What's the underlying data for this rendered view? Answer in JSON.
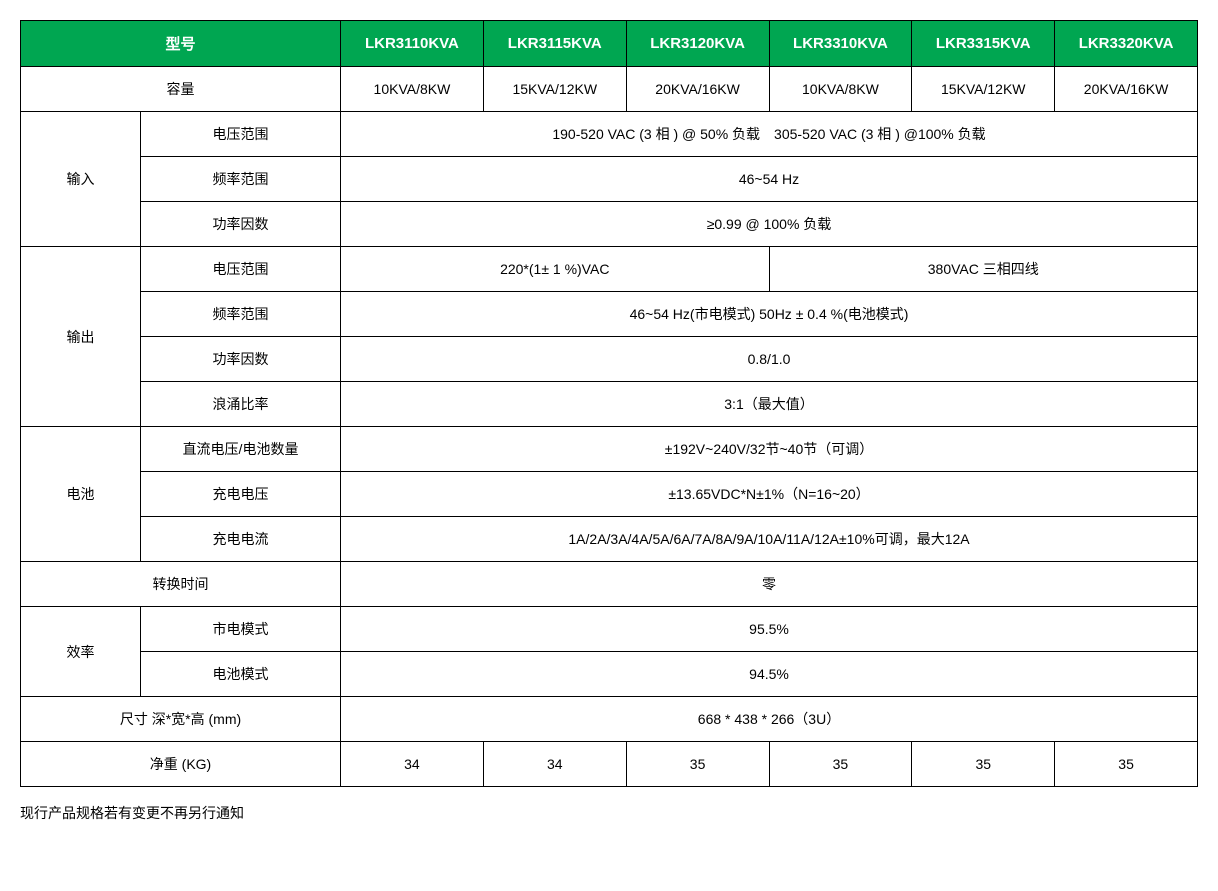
{
  "colors": {
    "header_bg": "#00a651",
    "header_text": "#ffffff",
    "border": "#000000",
    "body_bg": "#ffffff",
    "text": "#000000"
  },
  "header": {
    "model_label": "型号",
    "models": [
      "LKR3110KVA",
      "LKR3115KVA",
      "LKR3120KVA",
      "LKR3310KVA",
      "LKR3315KVA",
      "LKR3320KVA"
    ]
  },
  "capacity": {
    "label": "容量",
    "values": [
      "10KVA/8KW",
      "15KVA/12KW",
      "20KVA/16KW",
      "10KVA/8KW",
      "15KVA/12KW",
      "20KVA/16KW"
    ]
  },
  "input": {
    "label": "输入",
    "voltage_range": {
      "label": "电压范围",
      "value": "190-520 VAC (3 相 ) @ 50% 负载　305-520 VAC (3 相 ) @100% 负载"
    },
    "freq_range": {
      "label": "频率范围",
      "value": "46~54 Hz"
    },
    "power_factor": {
      "label": "功率因数",
      "value": "≥0.99 @ 100% 负载"
    }
  },
  "output": {
    "label": "输出",
    "voltage_range": {
      "label": "电压范围",
      "value1": "220*(1± 1 %)VAC",
      "value2": "380VAC 三相四线"
    },
    "freq_range": {
      "label": "频率范围",
      "value": "46~54 Hz(市电模式)  50Hz ± 0.4 %(电池模式)"
    },
    "power_factor": {
      "label": "功率因数",
      "value": "0.8/1.0"
    },
    "surge_ratio": {
      "label": "浪涌比率",
      "value": "3:1（最大值）"
    }
  },
  "battery": {
    "label": "电池",
    "dc_voltage": {
      "label": "直流电压/电池数量",
      "value": "±192V~240V/32节~40节（可调）"
    },
    "charge_voltage": {
      "label": "充电电压",
      "value": "±13.65VDC*N±1%（N=16~20）"
    },
    "charge_current": {
      "label": "充电电流",
      "value": "1A/2A/3A/4A/5A/6A/7A/8A/9A/10A/11A/12A±10%可调，最大12A"
    }
  },
  "transfer_time": {
    "label": "转换时间",
    "value": "零"
  },
  "efficiency": {
    "label": "效率",
    "mains_mode": {
      "label": "市电模式",
      "value": "95.5%"
    },
    "battery_mode": {
      "label": "电池模式",
      "value": "94.5%"
    }
  },
  "dimensions": {
    "label": "尺寸 深*宽*高  (mm)",
    "value": "668 * 438 * 266（3U）"
  },
  "weight": {
    "label": "净重 (KG)",
    "values": [
      "34",
      "34",
      "35",
      "35",
      "35",
      "35"
    ]
  },
  "footnote": "现行产品规格若有变更不再另行通知"
}
